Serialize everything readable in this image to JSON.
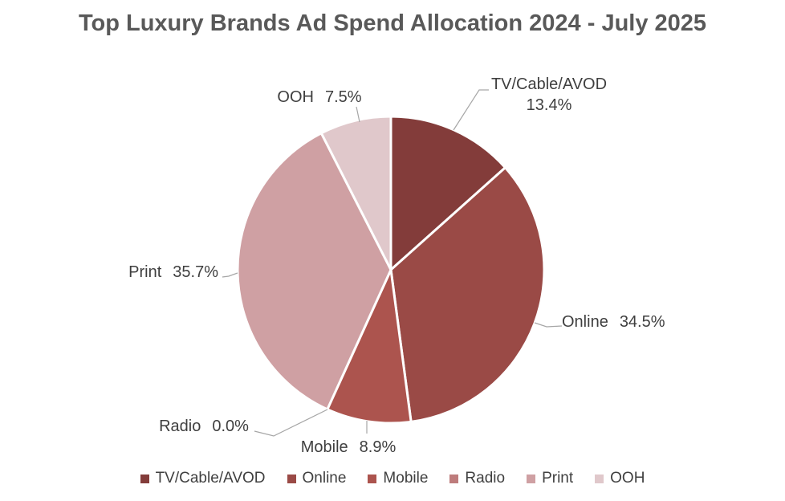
{
  "title": "Top Luxury Brands Ad Spend Allocation 2024 - July 2025",
  "chart_data": {
    "type": "pie",
    "categories": [
      "TV/Cable/AVOD",
      "Online",
      "Mobile",
      "Radio",
      "Print",
      "OOH"
    ],
    "values": [
      13.4,
      34.5,
      8.9,
      0.0,
      35.7,
      7.5
    ],
    "value_labels": [
      "13.4%",
      "34.5%",
      "8.9%",
      "0.0%",
      "35.7%",
      "7.5%"
    ],
    "colors": [
      "#833C3A",
      "#9A4A46",
      "#AC544E",
      "#BE7C7C",
      "#CFA0A3",
      "#E0C8CB"
    ],
    "title": "Top Luxury Brands Ad Spend Allocation 2024 - July 2025",
    "start_angle_deg": 0,
    "direction": "clockwise",
    "legend_position": "bottom",
    "slice_label_format": "category + percent with leader lines",
    "leader_lines": true
  },
  "styles": {
    "background": "#FFFFFF",
    "title_color": "#595959",
    "label_color": "#3F3F3F",
    "legend_text_color": "#404040",
    "leader_line_color": "#A6A6A6",
    "slice_separator_color": "#FFFFFF"
  }
}
